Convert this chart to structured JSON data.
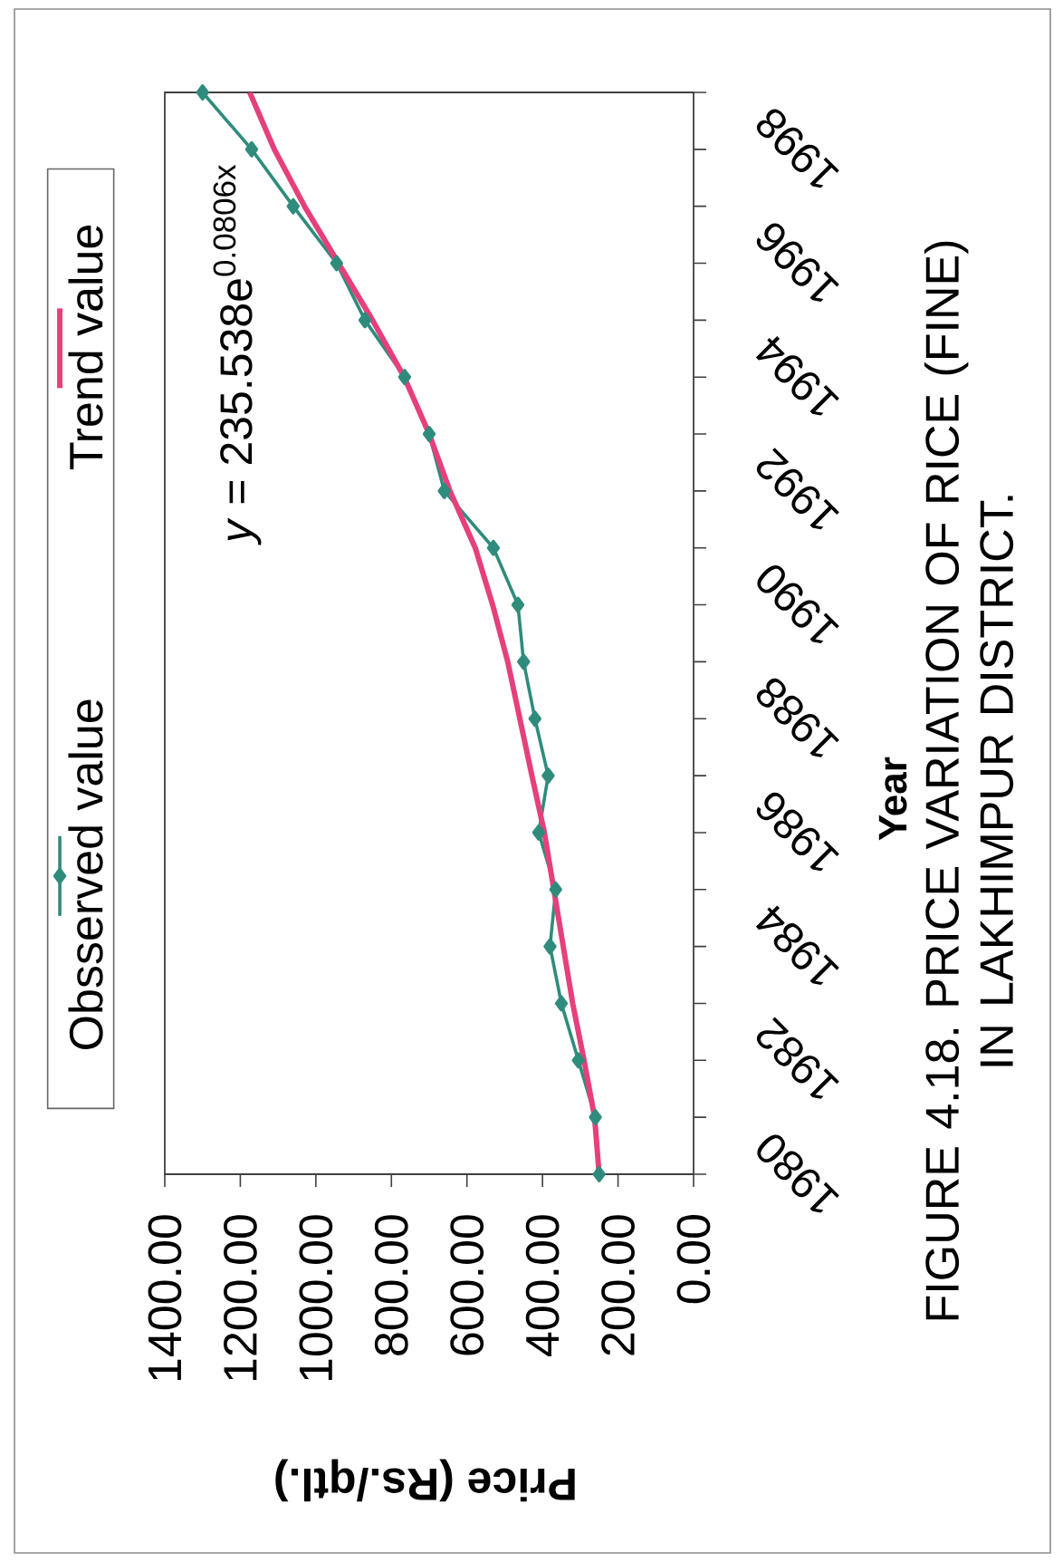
{
  "chart_data": {
    "type": "line",
    "orientation": "horizontal",
    "title": "FIGURE 4.18. PRICE VARIATION OF RICE (FINE) IN LAKHIMPUR DISTRICT.",
    "xlabel": "Price (Rs./qtl.)",
    "ylabel": "Year",
    "categories": [
      null,
      "1998",
      null,
      "1996",
      null,
      "1994",
      null,
      "1992",
      null,
      "1990",
      null,
      "1988",
      null,
      "1986",
      null,
      "1984",
      null,
      "1982",
      null,
      "1980"
    ],
    "xlim": [
      1400,
      0
    ],
    "xticks": [
      {
        "value": 1400,
        "label": "1400.00"
      },
      {
        "value": 1200,
        "label": "1200.00"
      },
      {
        "value": 1000,
        "label": "1000.00"
      },
      {
        "value": 800,
        "label": "800.00"
      },
      {
        "value": 600,
        "label": "600.00"
      },
      {
        "value": 400,
        "label": "400.00"
      },
      {
        "value": 200,
        "label": "200.00"
      },
      {
        "value": 0,
        "label": "0.00"
      }
    ],
    "series": [
      {
        "name": "Obsserved value",
        "color": "#2f8c7c",
        "marker": "diamond",
        "line_style": "solid",
        "values": [
          1300,
          1170,
          1060,
          945,
          870,
          765,
          700,
          660,
          530,
          465,
          450,
          420,
          385,
          410,
          365,
          380,
          350,
          305,
          260,
          250
        ]
      },
      {
        "name": "Trend value",
        "color": "#e6407c",
        "marker": "none",
        "line_style": "solid",
        "values": [
          1175,
          1110,
          1030,
          940,
          850,
          766,
          700,
          645,
          578,
          532,
          492,
          460,
          428,
          395,
          370,
          345,
          320,
          290,
          262,
          250
        ]
      }
    ],
    "annotations": [
      "*y* = 235.538e$^{0.0806x}$"
    ],
    "legend": "left"
  }
}
